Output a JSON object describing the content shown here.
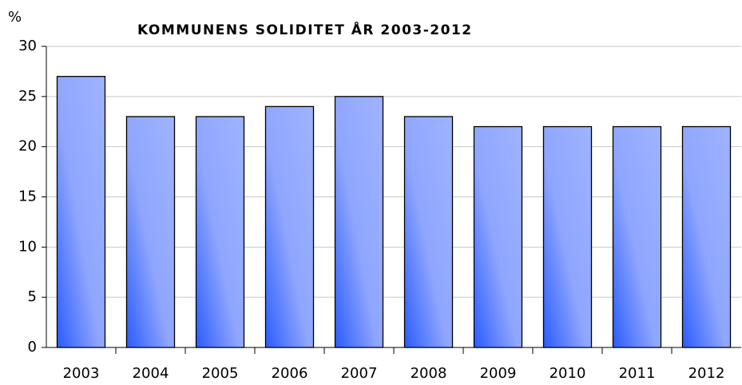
{
  "chart_data": {
    "type": "bar",
    "title": "KOMMUNENS SOLIDITET ÅR 2003-2012",
    "y_label": "%",
    "categories": [
      "2003",
      "2004",
      "2005",
      "2006",
      "2007",
      "2008",
      "2009",
      "2010",
      "2011",
      "2012"
    ],
    "values": [
      27,
      23,
      23,
      24,
      25,
      23,
      22,
      22,
      22,
      22
    ],
    "color": "#9fb3ff",
    "ylim": [
      0,
      30
    ],
    "yticks": [
      0,
      5,
      10,
      15,
      20,
      25,
      30
    ],
    "grid": true
  }
}
